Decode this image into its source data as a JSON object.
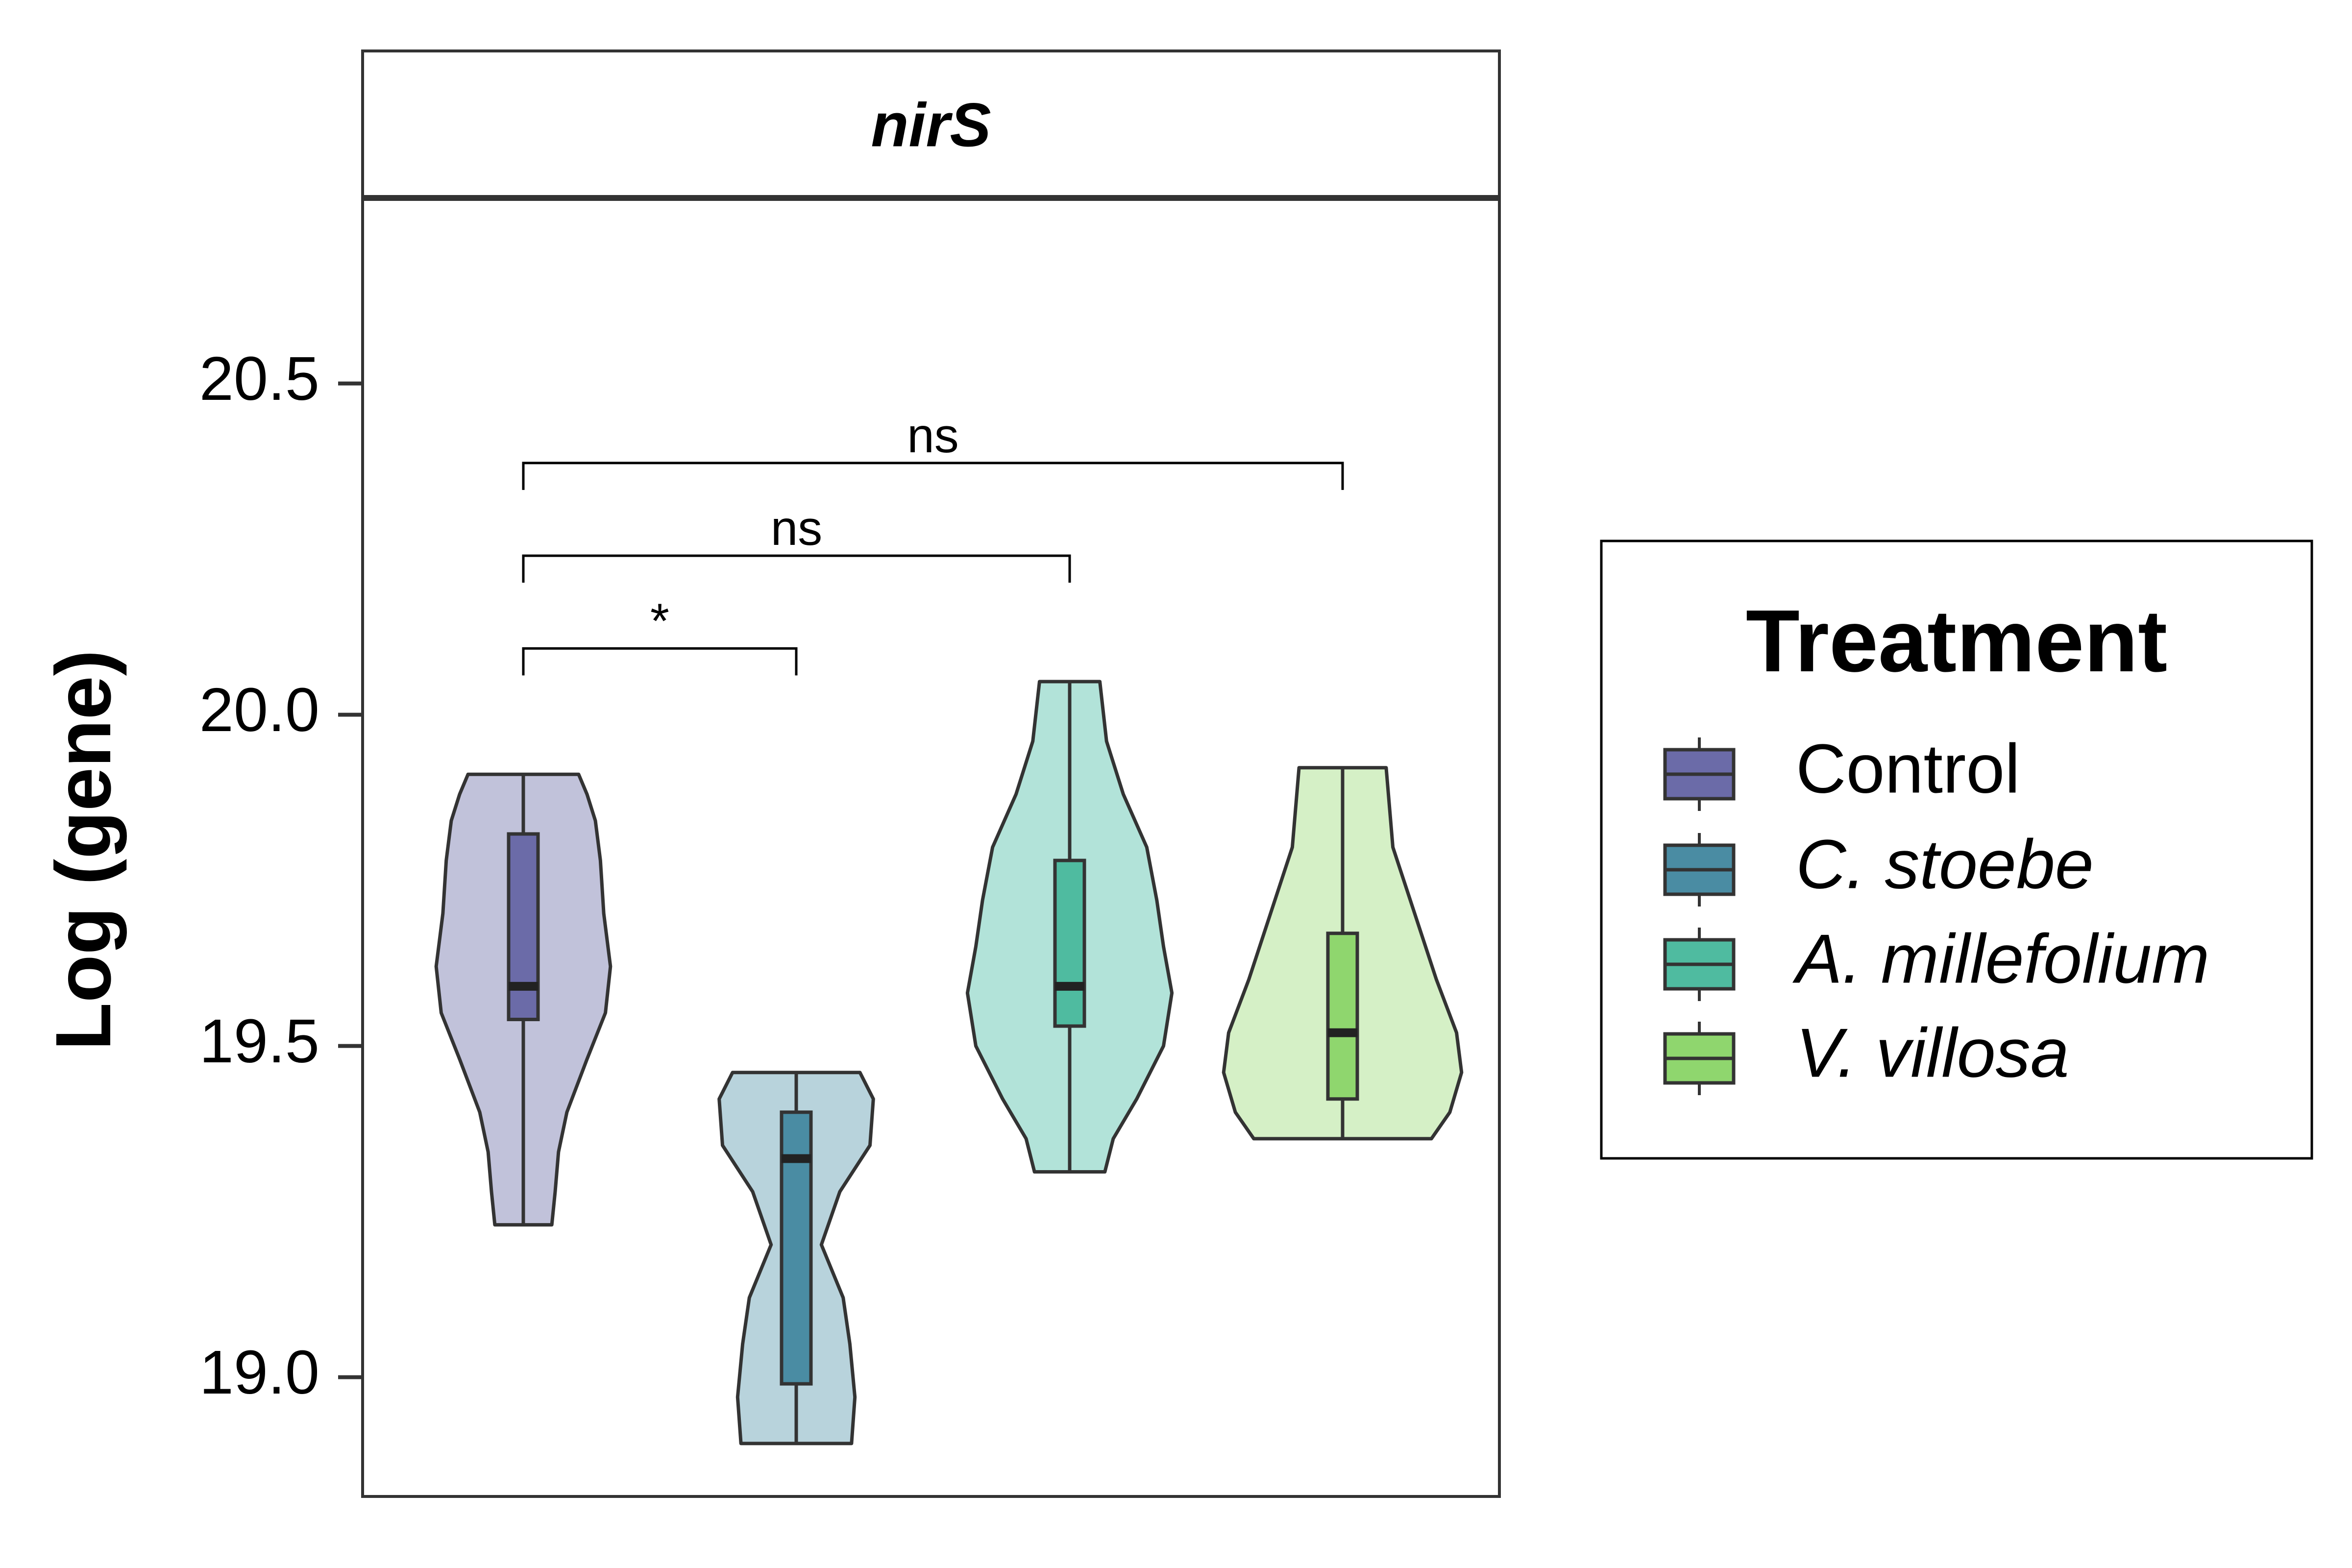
{
  "chart_data": {
    "type": "violin",
    "facet_label": "nirS",
    "ylabel": "Log (gene)",
    "xlabel": "",
    "ylim": [
      18.82,
      20.78
    ],
    "yticks": [
      "19.0",
      "19.5",
      "20.0",
      "20.5"
    ],
    "ytick_values": [
      19.0,
      19.5,
      20.0,
      20.5
    ],
    "grid": false,
    "legend_position": "right",
    "legend_title": "Treatment",
    "series": [
      {
        "name": "Control",
        "italic": false,
        "color": "#6B6BA8",
        "violin_color": "#C1C2DA",
        "min": 19.23,
        "q1": 19.54,
        "median": 19.59,
        "q3": 19.82,
        "max": 19.91,
        "density": [
          [
            19.23,
            0.17
          ],
          [
            19.28,
            0.19
          ],
          [
            19.34,
            0.21
          ],
          [
            19.4,
            0.26
          ],
          [
            19.48,
            0.38
          ],
          [
            19.55,
            0.49
          ],
          [
            19.62,
            0.52
          ],
          [
            19.7,
            0.48
          ],
          [
            19.78,
            0.46
          ],
          [
            19.84,
            0.43
          ],
          [
            19.88,
            0.38
          ],
          [
            19.91,
            0.33
          ]
        ]
      },
      {
        "name": "C. stoebe",
        "italic": true,
        "color": "#4A8CA3",
        "violin_color": "#B8D3DC",
        "min": 18.9,
        "q1": 18.99,
        "median": 19.33,
        "q3": 19.4,
        "max": 19.46,
        "density": [
          [
            18.9,
            0.33
          ],
          [
            18.97,
            0.35
          ],
          [
            19.05,
            0.32
          ],
          [
            19.12,
            0.28
          ],
          [
            19.2,
            0.15
          ],
          [
            19.28,
            0.26
          ],
          [
            19.35,
            0.44
          ],
          [
            19.42,
            0.46
          ],
          [
            19.46,
            0.38
          ]
        ]
      },
      {
        "name": "A. millefolium",
        "italic": true,
        "color": "#4FBBA0",
        "violin_color": "#B2E3D9",
        "min": 19.31,
        "q1": 19.53,
        "median": 19.59,
        "q3": 19.78,
        "max": 20.05,
        "density": [
          [
            19.31,
            0.21
          ],
          [
            19.36,
            0.26
          ],
          [
            19.42,
            0.4
          ],
          [
            19.5,
            0.56
          ],
          [
            19.58,
            0.61
          ],
          [
            19.65,
            0.56
          ],
          [
            19.72,
            0.52
          ],
          [
            19.8,
            0.46
          ],
          [
            19.88,
            0.32
          ],
          [
            19.96,
            0.22
          ],
          [
            20.05,
            0.18
          ]
        ]
      },
      {
        "name": "V. villosa",
        "italic": true,
        "color": "#8FD66E",
        "violin_color": "#D5F0C6",
        "min": 19.36,
        "q1": 19.42,
        "median": 19.52,
        "q3": 19.67,
        "max": 19.92,
        "density": [
          [
            19.36,
            0.53
          ],
          [
            19.4,
            0.64
          ],
          [
            19.46,
            0.71
          ],
          [
            19.52,
            0.68
          ],
          [
            19.6,
            0.56
          ],
          [
            19.7,
            0.43
          ],
          [
            19.8,
            0.3
          ],
          [
            19.92,
            0.26
          ]
        ]
      }
    ],
    "comparisons": [
      {
        "from": 0,
        "to": 1,
        "label": "*",
        "y": 20.1
      },
      {
        "from": 0,
        "to": 2,
        "label": "ns",
        "y": 20.24
      },
      {
        "from": 0,
        "to": 3,
        "label": "ns",
        "y": 20.38
      }
    ]
  }
}
